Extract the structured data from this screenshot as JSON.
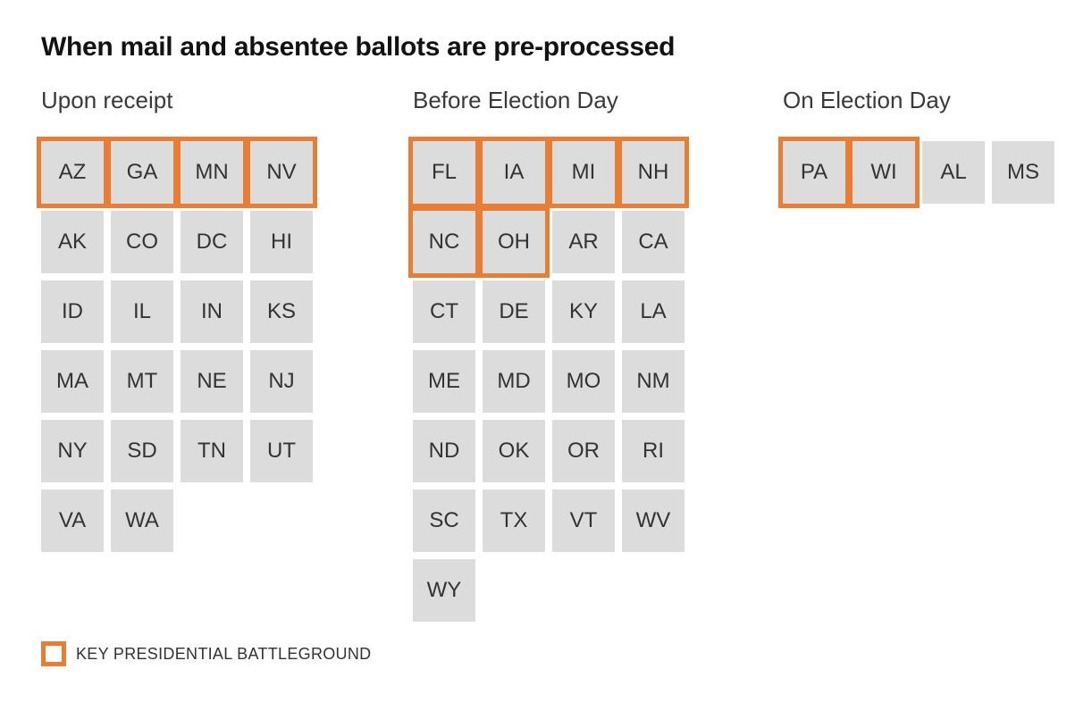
{
  "title": "When mail and absentee ballots are pre-processed",
  "colors": {
    "accent": "#e87d33",
    "square": "#dcdcdc",
    "title_text": "#121212",
    "label_text": "#333333"
  },
  "legend": {
    "label": "KEY PRESIDENTIAL BATTLEGROUND"
  },
  "groups": [
    {
      "label": "Upon receipt",
      "states": [
        {
          "abbr": "AZ",
          "battleground": true
        },
        {
          "abbr": "GA",
          "battleground": true
        },
        {
          "abbr": "MN",
          "battleground": true
        },
        {
          "abbr": "NV",
          "battleground": true
        },
        {
          "abbr": "AK",
          "battleground": false
        },
        {
          "abbr": "CO",
          "battleground": false
        },
        {
          "abbr": "DC",
          "battleground": false
        },
        {
          "abbr": "HI",
          "battleground": false
        },
        {
          "abbr": "ID",
          "battleground": false
        },
        {
          "abbr": "IL",
          "battleground": false
        },
        {
          "abbr": "IN",
          "battleground": false
        },
        {
          "abbr": "KS",
          "battleground": false
        },
        {
          "abbr": "MA",
          "battleground": false
        },
        {
          "abbr": "MT",
          "battleground": false
        },
        {
          "abbr": "NE",
          "battleground": false
        },
        {
          "abbr": "NJ",
          "battleground": false
        },
        {
          "abbr": "NY",
          "battleground": false
        },
        {
          "abbr": "SD",
          "battleground": false
        },
        {
          "abbr": "TN",
          "battleground": false
        },
        {
          "abbr": "UT",
          "battleground": false
        },
        {
          "abbr": "VA",
          "battleground": false
        },
        {
          "abbr": "WA",
          "battleground": false
        }
      ]
    },
    {
      "label": "Before Election Day",
      "states": [
        {
          "abbr": "FL",
          "battleground": true
        },
        {
          "abbr": "IA",
          "battleground": true
        },
        {
          "abbr": "MI",
          "battleground": true
        },
        {
          "abbr": "NH",
          "battleground": true
        },
        {
          "abbr": "NC",
          "battleground": true
        },
        {
          "abbr": "OH",
          "battleground": true
        },
        {
          "abbr": "AR",
          "battleground": false
        },
        {
          "abbr": "CA",
          "battleground": false
        },
        {
          "abbr": "CT",
          "battleground": false
        },
        {
          "abbr": "DE",
          "battleground": false
        },
        {
          "abbr": "KY",
          "battleground": false
        },
        {
          "abbr": "LA",
          "battleground": false
        },
        {
          "abbr": "ME",
          "battleground": false
        },
        {
          "abbr": "MD",
          "battleground": false
        },
        {
          "abbr": "MO",
          "battleground": false
        },
        {
          "abbr": "NM",
          "battleground": false
        },
        {
          "abbr": "ND",
          "battleground": false
        },
        {
          "abbr": "OK",
          "battleground": false
        },
        {
          "abbr": "OR",
          "battleground": false
        },
        {
          "abbr": "RI",
          "battleground": false
        },
        {
          "abbr": "SC",
          "battleground": false
        },
        {
          "abbr": "TX",
          "battleground": false
        },
        {
          "abbr": "VT",
          "battleground": false
        },
        {
          "abbr": "WV",
          "battleground": false
        },
        {
          "abbr": "WY",
          "battleground": false
        }
      ]
    },
    {
      "label": "On Election Day",
      "states": [
        {
          "abbr": "PA",
          "battleground": true
        },
        {
          "abbr": "WI",
          "battleground": true
        },
        {
          "abbr": "AL",
          "battleground": false
        },
        {
          "abbr": "MS",
          "battleground": false
        }
      ]
    }
  ],
  "chart_data": {
    "type": "table",
    "title": "When mail and absentee ballots are pre-processed",
    "legend": "KEY PRESIDENTIAL BATTLEGROUND",
    "legend_position": "bottom-left",
    "categories": [
      "Upon receipt",
      "Before Election Day",
      "On Election Day"
    ],
    "groups": [
      {
        "category": "Upon receipt",
        "states": [
          "AZ",
          "GA",
          "MN",
          "NV",
          "AK",
          "CO",
          "DC",
          "HI",
          "ID",
          "IL",
          "IN",
          "KS",
          "MA",
          "MT",
          "NE",
          "NJ",
          "NY",
          "SD",
          "TN",
          "UT",
          "VA",
          "WA"
        ],
        "battleground_states": [
          "AZ",
          "GA",
          "MN",
          "NV"
        ]
      },
      {
        "category": "Before Election Day",
        "states": [
          "FL",
          "IA",
          "MI",
          "NH",
          "NC",
          "OH",
          "AR",
          "CA",
          "CT",
          "DE",
          "KY",
          "LA",
          "ME",
          "MD",
          "MO",
          "NM",
          "ND",
          "OK",
          "OR",
          "RI",
          "SC",
          "TX",
          "VT",
          "WV",
          "WY"
        ],
        "battleground_states": [
          "FL",
          "IA",
          "MI",
          "NH",
          "NC",
          "OH"
        ]
      },
      {
        "category": "On Election Day",
        "states": [
          "PA",
          "WI",
          "AL",
          "MS"
        ],
        "battleground_states": [
          "PA",
          "WI"
        ]
      }
    ]
  }
}
